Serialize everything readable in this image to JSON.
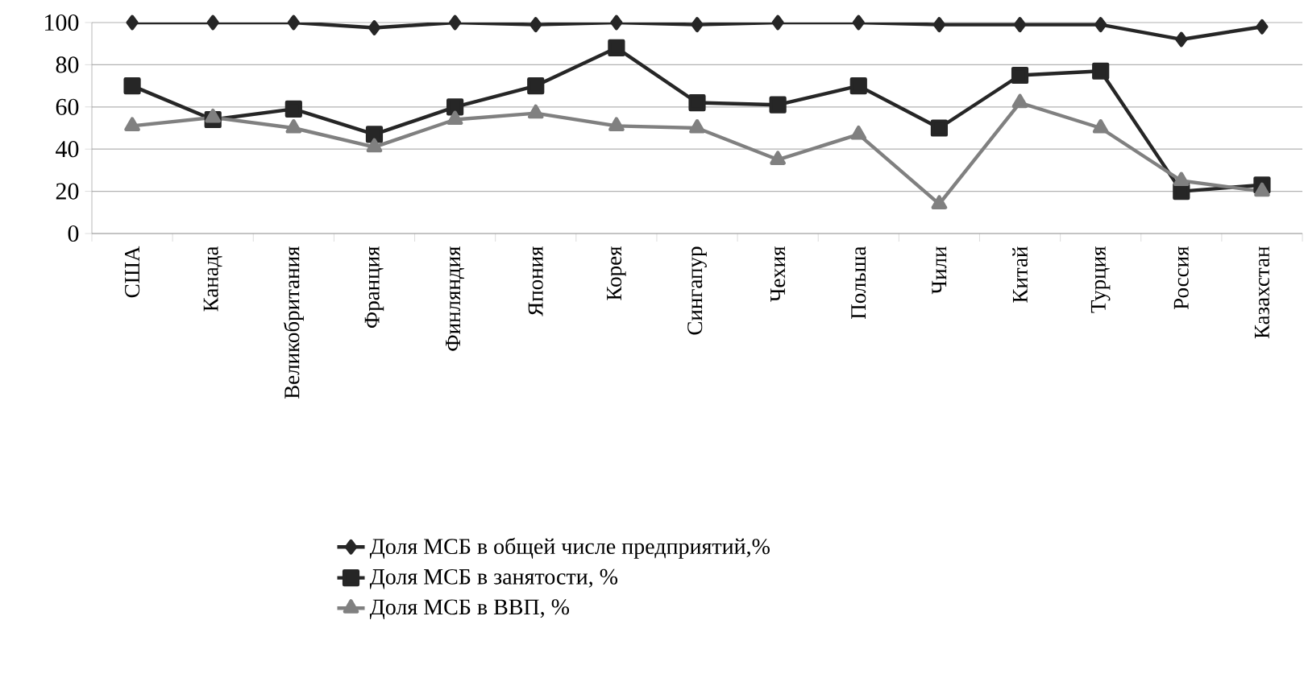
{
  "chart_data": {
    "type": "line",
    "categories": [
      "США",
      "Канада",
      "Великобритания",
      "Франция",
      "Финляндия",
      "Япония",
      "Корея",
      "Сингапур",
      "Чехия",
      "Польша",
      "Чили",
      "Китай",
      "Турция",
      "Россия",
      "Казахстан"
    ],
    "series": [
      {
        "name": "Доля МСБ в общей числе предприятий,%",
        "color": "#262626",
        "marker": "diamond",
        "values": [
          100,
          100,
          100,
          97.5,
          100,
          99,
          100,
          99,
          100,
          100,
          99,
          99,
          99,
          92,
          98
        ]
      },
      {
        "name": "Доля МСБ в занятости, %",
        "color": "#262626",
        "marker": "square",
        "values": [
          70,
          54,
          59,
          47,
          60,
          70,
          88,
          62,
          61,
          70,
          50,
          75,
          77,
          20,
          23
        ]
      },
      {
        "name": "Доля МСБ в ВВП, %",
        "color": "#808080",
        "marker": "triangle",
        "values": [
          51,
          55,
          50,
          41,
          54,
          57,
          51,
          50,
          35,
          47,
          14,
          62,
          50,
          25,
          20
        ]
      }
    ],
    "ylim": [
      0,
      100
    ],
    "yticks": [
      0,
      20,
      40,
      60,
      80,
      100
    ],
    "grid": "y",
    "legend": "bottom",
    "line_style": "solid"
  }
}
